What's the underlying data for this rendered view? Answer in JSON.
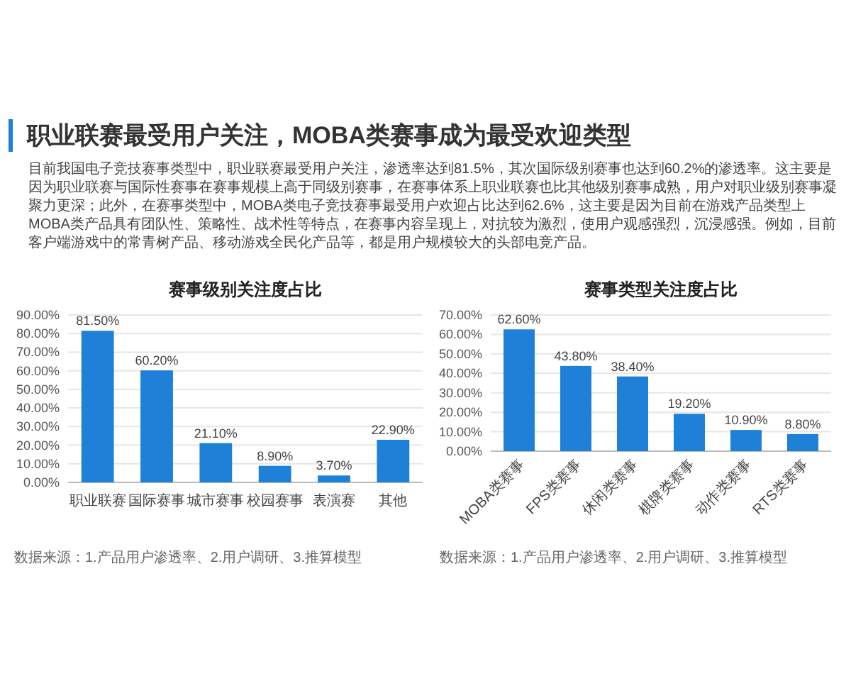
{
  "chart_data": [
    {
      "type": "other",
      "title": "职业联赛最受用户关注，MOBA类赛事成为最受欢迎类型",
      "annotations": [
        "目前我国电子竞技赛事类型中，职业联赛最受用户关注，渗透率达到81.5%，其次国际级别赛事也达到60.2%的渗透率。这主要是因为职业联赛与国际性赛事在赛事规模上高于同级别赛事，在赛事体系上职业联赛也比其他级别赛事成熟，用户对职业级别赛事凝聚力更深；此外，在赛事类型中，MOBA类电子竞技赛事最受用户欢迎占比达到62.6%，这主要是因为目前在游戏产品类型上MOBA类产品具有团队性、策略性、战术性等特点，在赛事内容呈现上，对抗较为激烈，使用户观感强烈，沉浸感强。例如，目前客户端游戏中的常青树产品、移动游戏全民化产品等，都是用户规模较大的头部电竞产品。"
      ]
    },
    {
      "type": "bar",
      "title": "赛事级别关注度占比",
      "categories": [
        "职业联赛",
        "国际赛事",
        "城市赛事",
        "校园赛事",
        "表演赛",
        "其他"
      ],
      "values": [
        81.5,
        60.2,
        21.1,
        8.9,
        3.7,
        22.9
      ],
      "value_labels": [
        "81.50%",
        "60.20%",
        "21.10%",
        "8.90%",
        "3.70%",
        "22.90%"
      ],
      "color": "#1f80d8",
      "ylim": [
        0,
        90
      ],
      "yticks": [
        {
          "value": 0,
          "label": "0.00%"
        },
        {
          "value": 10,
          "label": "10.00%"
        },
        {
          "value": 20,
          "label": "20.00%"
        },
        {
          "value": 30,
          "label": "30.00%"
        },
        {
          "value": 40,
          "label": "40.00%"
        },
        {
          "value": 50,
          "label": "50.00%"
        },
        {
          "value": 60,
          "label": "60.00%"
        },
        {
          "value": 70,
          "label": "70.00%"
        },
        {
          "value": 80,
          "label": "80.00%"
        },
        {
          "value": 90,
          "label": "90.00%"
        }
      ],
      "grid": "y",
      "annotations": [
        "数据来源：1.产品用户渗透率、2.用户调研、3.推算模型"
      ]
    },
    {
      "type": "bar",
      "title": "赛事类型关注度占比",
      "categories": [
        "MOBA类赛事",
        "FPS类赛事",
        "休闲类赛事",
        "棋牌类赛事",
        "动作类赛事",
        "RTS类赛事"
      ],
      "values": [
        62.6,
        43.8,
        38.4,
        19.2,
        10.9,
        8.8
      ],
      "value_labels": [
        "62.60%",
        "43.80%",
        "38.40%",
        "19.20%",
        "10.90%",
        "8.80%"
      ],
      "color": "#1f80d8",
      "ylim": [
        0,
        70
      ],
      "yticks": [
        {
          "value": 0,
          "label": "0.00%"
        },
        {
          "value": 10,
          "label": "10.00%"
        },
        {
          "value": 20,
          "label": "20.00%"
        },
        {
          "value": 30,
          "label": "30.00%"
        },
        {
          "value": 40,
          "label": "40.00%"
        },
        {
          "value": 50,
          "label": "50.00%"
        },
        {
          "value": 60,
          "label": "60.00%"
        },
        {
          "value": 70,
          "label": "70.00%"
        }
      ],
      "grid": "y",
      "annotations": [
        "数据来源：1.产品用户渗透率、2.用户调研、3.推算模型"
      ]
    }
  ]
}
